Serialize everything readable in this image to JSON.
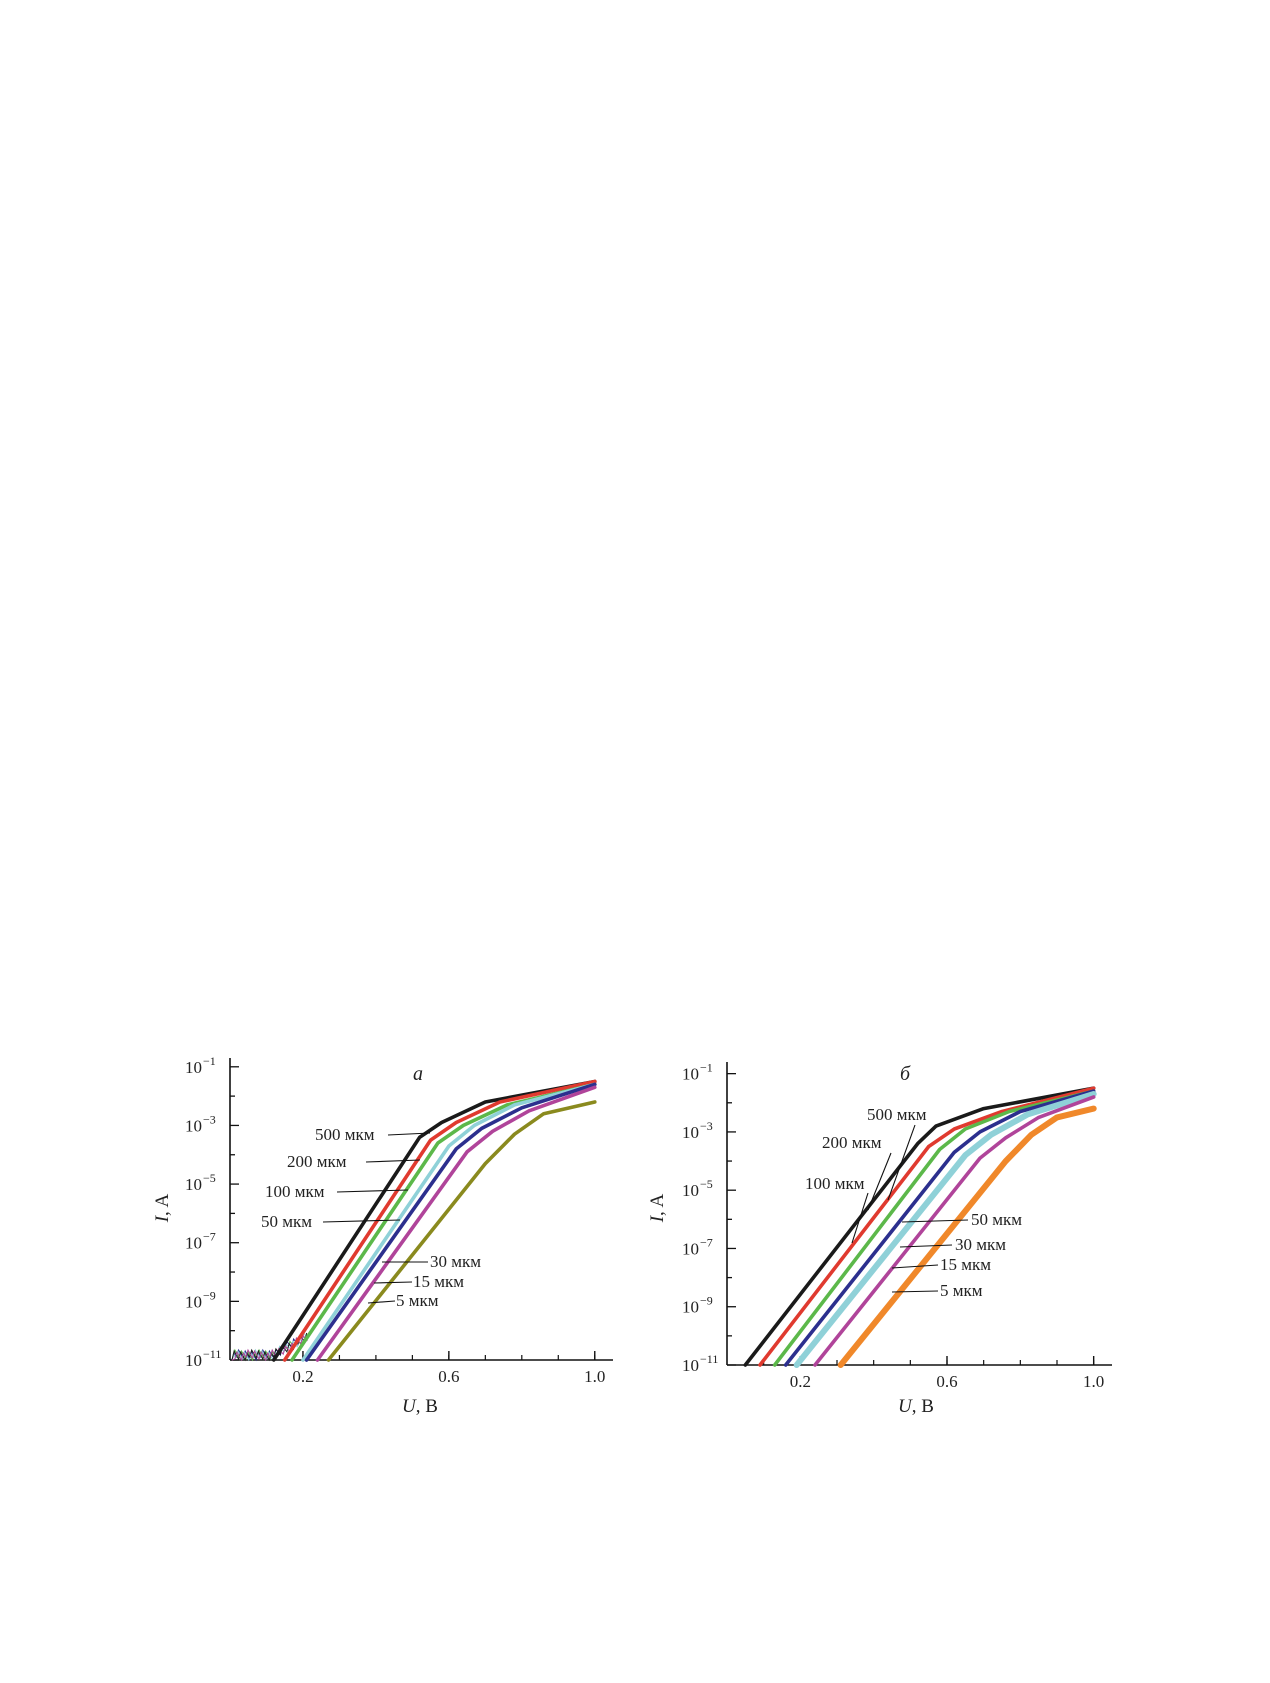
{
  "chart_data": [
    {
      "type": "line",
      "panel_label": "а",
      "xlabel_var": "U",
      "xlabel_unit": ", В",
      "ylabel_var": "I",
      "ylabel_unit": ", A",
      "xlim": [
        0.0,
        1.05
      ],
      "ylog": true,
      "ylim_exp": [
        -11,
        -0.7
      ],
      "xticks": [
        0.2,
        0.6,
        1.0
      ],
      "xtick_labels": [
        "0.2",
        "0.6",
        "1.0"
      ],
      "yticks_exp": [
        -1,
        -3,
        -5,
        -7,
        -9,
        -11
      ],
      "ytick_labels": [
        "10",
        "10",
        "10",
        "10",
        "10",
        "10"
      ],
      "ytick_exps": [
        "−1",
        "−3",
        "−5",
        "−7",
        "−9",
        "−11"
      ],
      "series": [
        {
          "label": "500 мкм",
          "color": "#1a1a1a",
          "x": [
            0.12,
            0.52,
            0.58,
            0.7,
            1.0
          ],
          "y_exp": [
            -11.0,
            -3.4,
            -2.9,
            -2.2,
            -1.5
          ]
        },
        {
          "label": "200 мкм",
          "color": "#e03a2f",
          "x": [
            0.15,
            0.55,
            0.62,
            0.74,
            1.0
          ],
          "y_exp": [
            -11.0,
            -3.5,
            -2.9,
            -2.2,
            -1.5
          ]
        },
        {
          "label": "100 мкм",
          "color": "#5cb84a",
          "x": [
            0.17,
            0.57,
            0.64,
            0.76,
            1.0
          ],
          "y_exp": [
            -11.0,
            -3.6,
            -3.0,
            -2.3,
            -1.6
          ]
        },
        {
          "label": "50 мкм",
          "color": "#8fd1d8",
          "x": [
            0.2,
            0.6,
            0.67,
            0.78,
            1.0
          ],
          "y_exp": [
            -11.0,
            -3.7,
            -3.0,
            -2.3,
            -1.6
          ]
        },
        {
          "label": "30 мкм",
          "color": "#2c2f8e",
          "x": [
            0.21,
            0.62,
            0.69,
            0.8,
            1.0
          ],
          "y_exp": [
            -11.0,
            -3.8,
            -3.1,
            -2.4,
            -1.6
          ]
        },
        {
          "label": "15 мкм",
          "color": "#b0449a",
          "x": [
            0.24,
            0.65,
            0.72,
            0.82,
            1.0
          ],
          "y_exp": [
            -11.0,
            -3.9,
            -3.2,
            -2.5,
            -1.7
          ]
        },
        {
          "label": "5 мкм",
          "color": "#8a8a1e",
          "x": [
            0.27,
            0.7,
            0.78,
            0.86,
            1.0
          ],
          "y_exp": [
            -11.0,
            -4.3,
            -3.3,
            -2.6,
            -2.2
          ]
        }
      ],
      "annotations": [
        {
          "text": "500 мкм",
          "series": "500 мкм"
        },
        {
          "text": "200 мкм",
          "series": "200 мкм"
        },
        {
          "text": "100 мкм",
          "series": "100 мкм"
        },
        {
          "text": "50 мкм",
          "series": "50 мкм"
        },
        {
          "text": "30 мкм",
          "series": "30 мкм"
        },
        {
          "text": "15 мкм",
          "series": "15 мкм"
        },
        {
          "text": "5 мкм",
          "series": "5 мкм"
        }
      ]
    },
    {
      "type": "line",
      "panel_label": "б",
      "xlabel_var": "U",
      "xlabel_unit": ", В",
      "ylabel_var": "I",
      "ylabel_unit": ", A",
      "xlim": [
        0.0,
        1.05
      ],
      "ylog": true,
      "ylim_exp": [
        -11,
        -0.6
      ],
      "xticks": [
        0.2,
        0.6,
        1.0
      ],
      "xtick_labels": [
        "0.2",
        "0.6",
        "1.0"
      ],
      "yticks_exp": [
        -1,
        -3,
        -5,
        -7,
        -9,
        -11
      ],
      "ytick_labels": [
        "10",
        "10",
        "10",
        "10",
        "10",
        "10"
      ],
      "ytick_exps": [
        "−1",
        "−3",
        "−5",
        "−7",
        "−9",
        "−11"
      ],
      "series": [
        {
          "label": "500 мкм",
          "color": "#1a1a1a",
          "x": [
            0.05,
            0.52,
            0.57,
            0.7,
            1.0
          ],
          "y_exp": [
            -11.0,
            -3.4,
            -2.8,
            -2.2,
            -1.5
          ]
        },
        {
          "label": "200 мкм",
          "color": "#e03a2f",
          "x": [
            0.09,
            0.55,
            0.62,
            0.75,
            1.0
          ],
          "y_exp": [
            -11.0,
            -3.5,
            -2.9,
            -2.3,
            -1.5
          ]
        },
        {
          "label": "100 мкм",
          "color": "#5cb84a",
          "x": [
            0.13,
            0.58,
            0.65,
            0.77,
            1.0
          ],
          "y_exp": [
            -11.0,
            -3.6,
            -2.9,
            -2.3,
            -1.6
          ]
        },
        {
          "label": "50 мкм",
          "color": "#2c2f8e",
          "x": [
            0.16,
            0.62,
            0.69,
            0.8,
            1.0
          ],
          "y_exp": [
            -11.0,
            -3.7,
            -3.0,
            -2.3,
            -1.6
          ]
        },
        {
          "label": "30 мкм",
          "color": "#8fd1d8",
          "x": [
            0.19,
            0.65,
            0.72,
            0.82,
            1.0
          ],
          "y_exp": [
            -11.0,
            -3.8,
            -3.1,
            -2.4,
            -1.7
          ]
        },
        {
          "label": "15 мкм",
          "color": "#b0449a",
          "x": [
            0.24,
            0.69,
            0.76,
            0.85,
            1.0
          ],
          "y_exp": [
            -11.0,
            -3.9,
            -3.2,
            -2.5,
            -1.8
          ]
        },
        {
          "label": "5 мкм",
          "color": "#f0882a",
          "x": [
            0.31,
            0.76,
            0.83,
            0.9,
            1.0
          ],
          "y_exp": [
            -11.0,
            -4.0,
            -3.1,
            -2.5,
            -2.2
          ]
        }
      ],
      "annotations": [
        {
          "text": "500 мкм",
          "series": "500 мкм"
        },
        {
          "text": "200 мкм",
          "series": "200 мкм"
        },
        {
          "text": "100 мкм",
          "series": "100 мкм"
        },
        {
          "text": "50 мкм",
          "series": "50 мкм"
        },
        {
          "text": "30 мкм",
          "series": "30 мкм"
        },
        {
          "text": "15 мкм",
          "series": "15 мкм"
        },
        {
          "text": "5 мкм",
          "series": "5 мкм"
        }
      ]
    }
  ]
}
